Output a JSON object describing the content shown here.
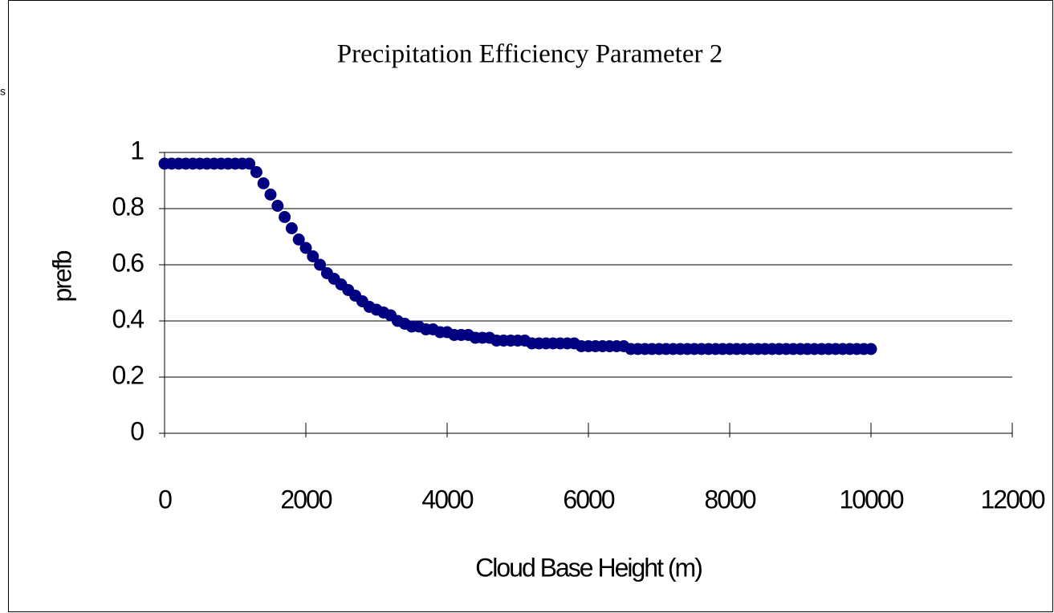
{
  "chart_data": {
    "type": "scatter",
    "title": "Precipitation Efficiency Parameter 2",
    "annotation": "s",
    "xlabel": "Cloud Base Height (m)",
    "ylabel": "prefb",
    "series": [
      {
        "name": "prefb",
        "color": "#000080",
        "x": [
          0,
          100,
          200,
          300,
          400,
          500,
          600,
          700,
          800,
          900,
          1000,
          1100,
          1200,
          1300,
          1400,
          1500,
          1600,
          1700,
          1800,
          1900,
          2000,
          2100,
          2200,
          2300,
          2400,
          2500,
          2600,
          2700,
          2800,
          2900,
          3000,
          3100,
          3200,
          3300,
          3400,
          3500,
          3600,
          3700,
          3800,
          3900,
          4000,
          4100,
          4200,
          4300,
          4400,
          4500,
          4600,
          4700,
          4800,
          4900,
          5000,
          5100,
          5200,
          5300,
          5400,
          5500,
          5600,
          5700,
          5800,
          5900,
          6000,
          6100,
          6200,
          6300,
          6400,
          6500,
          6600,
          6700,
          6800,
          6900,
          7000,
          7100,
          7200,
          7300,
          7400,
          7500,
          7600,
          7700,
          7800,
          7900,
          8000,
          8100,
          8200,
          8300,
          8400,
          8500,
          8600,
          8700,
          8800,
          8900,
          9000,
          9100,
          9200,
          9300,
          9400,
          9500,
          9600,
          9700,
          9800,
          9900,
          10000
        ],
        "values": [
          0.96,
          0.96,
          0.96,
          0.96,
          0.96,
          0.96,
          0.96,
          0.96,
          0.96,
          0.96,
          0.96,
          0.96,
          0.96,
          0.93,
          0.89,
          0.85,
          0.81,
          0.77,
          0.73,
          0.69,
          0.66,
          0.63,
          0.6,
          0.57,
          0.55,
          0.53,
          0.51,
          0.49,
          0.47,
          0.45,
          0.44,
          0.43,
          0.42,
          0.4,
          0.39,
          0.38,
          0.38,
          0.37,
          0.37,
          0.36,
          0.36,
          0.35,
          0.35,
          0.35,
          0.34,
          0.34,
          0.34,
          0.33,
          0.33,
          0.33,
          0.33,
          0.33,
          0.32,
          0.32,
          0.32,
          0.32,
          0.32,
          0.32,
          0.32,
          0.31,
          0.31,
          0.31,
          0.31,
          0.31,
          0.31,
          0.31,
          0.3,
          0.3,
          0.3,
          0.3,
          0.3,
          0.3,
          0.3,
          0.3,
          0.3,
          0.3,
          0.3,
          0.3,
          0.3,
          0.3,
          0.3,
          0.3,
          0.3,
          0.3,
          0.3,
          0.3,
          0.3,
          0.3,
          0.3,
          0.3,
          0.3,
          0.3,
          0.3,
          0.3,
          0.3,
          0.3,
          0.3,
          0.3,
          0.3,
          0.3,
          0.3
        ]
      }
    ],
    "xlim": [
      0,
      12000
    ],
    "xticks": [
      0,
      2000,
      4000,
      6000,
      8000,
      10000,
      12000
    ],
    "ylim": [
      0,
      1
    ],
    "yticks": [
      0,
      0.2,
      0.4,
      0.6,
      0.8,
      1
    ],
    "grid": true
  }
}
